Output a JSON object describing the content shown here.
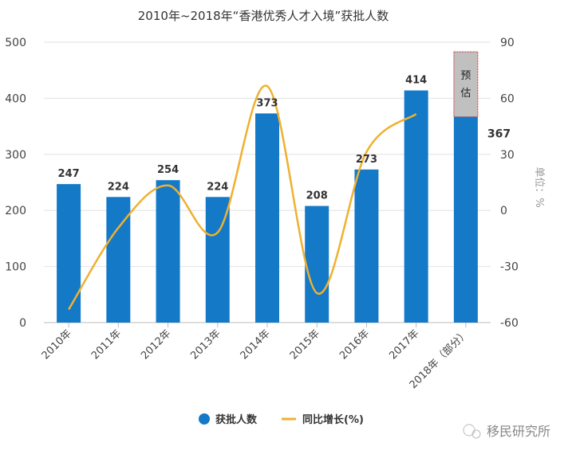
{
  "chart_data": {
    "type": "bar+line",
    "title": "2010年~2018年“香港优秀人才入境”获批人数",
    "categories": [
      "2010年",
      "2011年",
      "2012年",
      "2013年",
      "2014年",
      "2015年",
      "2016年",
      "2017年",
      "2018年（部分）"
    ],
    "series": [
      {
        "name": "获批人数",
        "type": "bar",
        "axis": "left",
        "color": "#1479c7",
        "values": [
          247,
          224,
          254,
          224,
          373,
          208,
          273,
          414,
          367
        ]
      },
      {
        "name": "同比增长(%)",
        "type": "line",
        "axis": "right",
        "color": "#f0b030",
        "values": [
          -53,
          -9.3,
          13.4,
          -11.8,
          66.5,
          -44.2,
          31.3,
          51.6,
          null
        ]
      }
    ],
    "estimate": {
      "label_1": "预",
      "label_2": "估",
      "category": "2018年（部分）",
      "top_value": 483,
      "color": "#c0c0c0"
    },
    "y_left": {
      "ylim": [
        0,
        500
      ],
      "ticks": [
        "0",
        "100",
        "200",
        "300",
        "400",
        "500"
      ]
    },
    "y_right": {
      "ylim": [
        -60,
        90
      ],
      "ticks": [
        "-60",
        "-30",
        "0",
        "30",
        "60",
        "90"
      ],
      "label": "单位：%"
    },
    "grid": true,
    "legend": {
      "position": "bottom",
      "bar_label": "获批人数",
      "line_label": "同比增长(%)"
    }
  },
  "watermark": "移民研究所"
}
